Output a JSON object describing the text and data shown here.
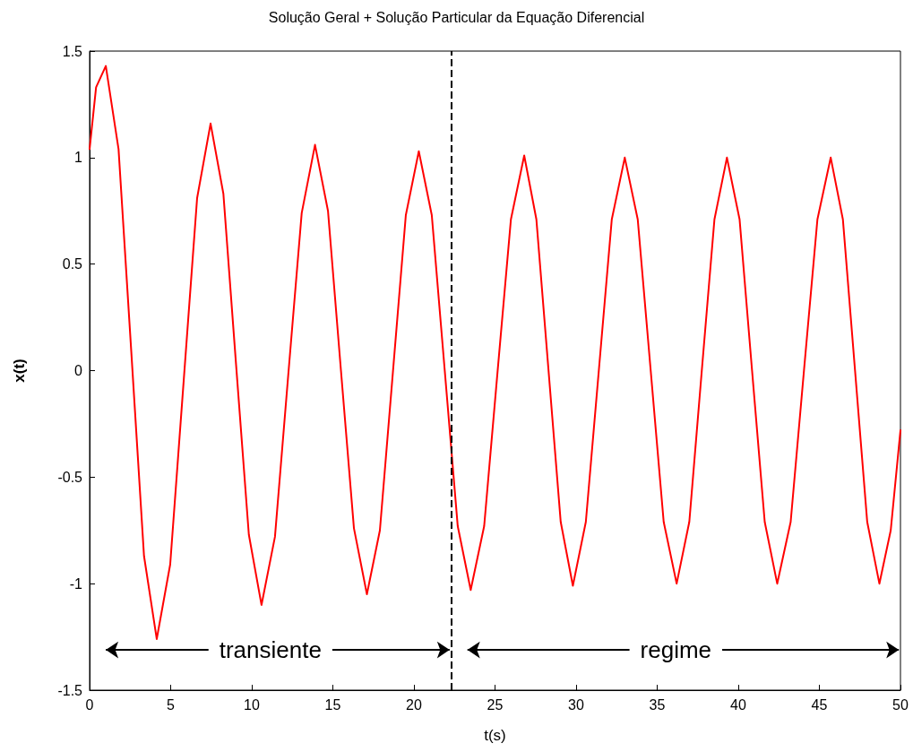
{
  "chart_data": {
    "type": "line",
    "title": "Solução Geral + Solução Particular da Equação Diferencial",
    "xlabel": "t(s)",
    "ylabel": "x(t)",
    "xlim": [
      0,
      50
    ],
    "xticks": [
      0,
      5,
      10,
      15,
      20,
      25,
      30,
      35,
      40,
      45,
      50
    ],
    "ylim": [
      -1.5,
      1.5
    ],
    "yticks": [
      -1.5,
      -1,
      -0.5,
      0,
      0.5,
      1,
      1.5
    ],
    "grid": false,
    "marker": "none",
    "line_style": "solid",
    "series": [
      {
        "color": "#ff0000",
        "x": [
          0,
          0.4,
          1.0,
          1.785,
          2.57,
          3.355,
          4.14,
          4.97,
          5.8,
          6.63,
          7.46,
          8.25,
          9.03,
          9.82,
          10.6,
          11.43,
          12.25,
          13.08,
          13.9,
          14.7,
          15.5,
          16.3,
          17.1,
          17.9,
          18.7,
          19.5,
          20.3,
          21.1,
          21.9,
          22.7,
          23.5,
          24.33,
          25.15,
          25.98,
          26.8,
          27.55,
          28.3,
          29.05,
          29.8,
          30.6,
          31.4,
          32.2,
          33.0,
          33.8,
          34.6,
          35.4,
          36.2,
          36.98,
          37.75,
          38.53,
          39.3,
          40.08,
          40.85,
          41.63,
          42.4,
          43.23,
          44.05,
          44.88,
          45.7,
          46.45,
          47.2,
          47.95,
          48.7,
          49.4,
          50
        ],
        "values": [
          1.04,
          1.33,
          1.43,
          1.04,
          0.09,
          -0.87,
          -1.26,
          -0.91,
          -0.05,
          0.81,
          1.16,
          0.83,
          0.03,
          -0.77,
          -1.1,
          -0.78,
          -0.02,
          0.74,
          1.06,
          0.75,
          0,
          -0.74,
          -1.05,
          -0.75,
          -0.01,
          0.73,
          1.03,
          0.73,
          0,
          -0.73,
          -1.03,
          -0.73,
          -0.01,
          0.71,
          1.01,
          0.71,
          0,
          -0.71,
          -1.01,
          -0.71,
          0,
          0.71,
          1.0,
          0.71,
          0,
          -0.71,
          -1.0,
          -0.71,
          0,
          0.71,
          1.0,
          0.71,
          0,
          -0.71,
          -1.0,
          -0.71,
          0,
          0.71,
          1.0,
          0.71,
          0,
          -0.71,
          -1.0,
          -0.75,
          -0.28
        ]
      }
    ],
    "ref_lines": [
      {
        "axis": "x",
        "value": 22.3,
        "color": "#000000",
        "line_style": "dashed"
      }
    ],
    "annotations": [
      "transiente",
      "regime"
    ]
  }
}
